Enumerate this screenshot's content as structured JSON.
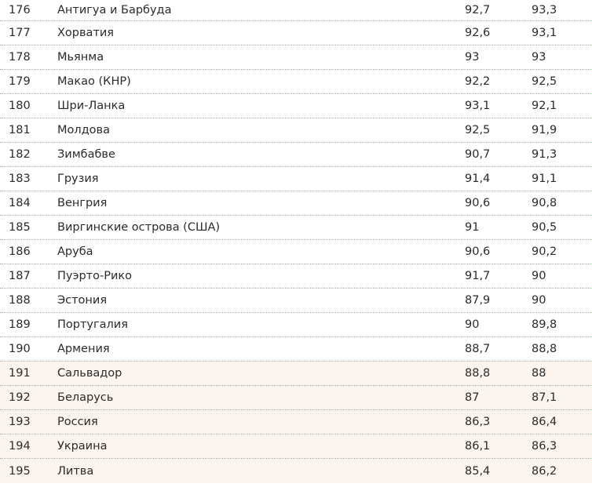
{
  "table": {
    "rows": [
      {
        "rank": "176",
        "name": "Антигуа и Барбуда",
        "v1": "92,7",
        "v2": "93,3",
        "highlight": false
      },
      {
        "rank": "177",
        "name": "Хорватия",
        "v1": "92,6",
        "v2": "93,1",
        "highlight": false
      },
      {
        "rank": "178",
        "name": "Мьянма",
        "v1": "93",
        "v2": "93",
        "highlight": false
      },
      {
        "rank": "179",
        "name": "Макао (КНР)",
        "v1": "92,2",
        "v2": "92,5",
        "highlight": false
      },
      {
        "rank": "180",
        "name": "Шри-Ланка",
        "v1": "93,1",
        "v2": "92,1",
        "highlight": false
      },
      {
        "rank": "181",
        "name": "Молдова",
        "v1": "92,5",
        "v2": "91,9",
        "highlight": false
      },
      {
        "rank": "182",
        "name": "Зимбабве",
        "v1": "90,7",
        "v2": "91,3",
        "highlight": false
      },
      {
        "rank": "183",
        "name": "Грузия",
        "v1": "91,4",
        "v2": "91,1",
        "highlight": false
      },
      {
        "rank": "184",
        "name": "Венгрия",
        "v1": "90,6",
        "v2": "90,8",
        "highlight": false
      },
      {
        "rank": "185",
        "name": "Виргинские острова (США)",
        "v1": "91",
        "v2": "90,5",
        "highlight": false
      },
      {
        "rank": "186",
        "name": "Аруба",
        "v1": "90,6",
        "v2": "90,2",
        "highlight": false
      },
      {
        "rank": "187",
        "name": "Пуэрто-Рико",
        "v1": "91,7",
        "v2": "90",
        "highlight": false
      },
      {
        "rank": "188",
        "name": "Эстония",
        "v1": "87,9",
        "v2": "90",
        "highlight": false
      },
      {
        "rank": "189",
        "name": "Португалия",
        "v1": "90",
        "v2": "89,8",
        "highlight": false
      },
      {
        "rank": "190",
        "name": "Армения",
        "v1": "88,7",
        "v2": "88,8",
        "highlight": false
      },
      {
        "rank": "191",
        "name": "Сальвадор",
        "v1": "88,8",
        "v2": "88",
        "highlight": true
      },
      {
        "rank": "192",
        "name": "Беларусь",
        "v1": "87",
        "v2": "87,1",
        "highlight": true
      },
      {
        "rank": "193",
        "name": "Россия",
        "v1": "86,3",
        "v2": "86,4",
        "highlight": true
      },
      {
        "rank": "194",
        "name": "Украина",
        "v1": "86,1",
        "v2": "86,3",
        "highlight": true
      },
      {
        "rank": "195",
        "name": "Литва",
        "v1": "85,4",
        "v2": "86,2",
        "highlight": true
      }
    ]
  },
  "colors": {
    "highlight_bg": "#fdf4ee",
    "divider": "#8fc79c",
    "text": "#2b2b2b"
  }
}
